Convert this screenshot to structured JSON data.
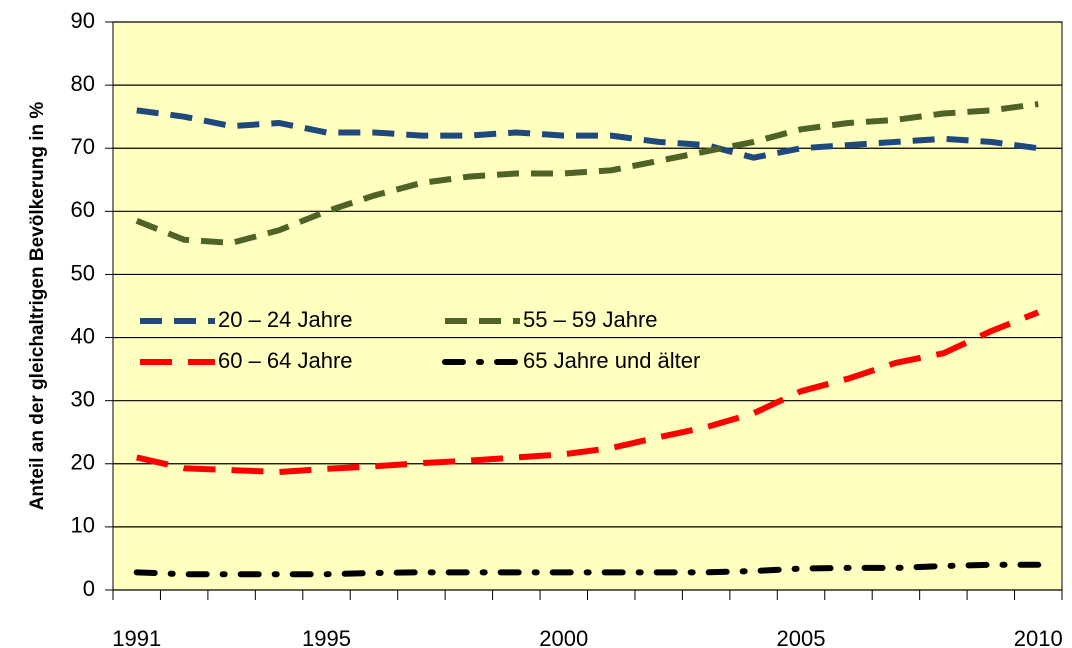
{
  "chart_data": {
    "type": "line",
    "ylabel": "Anteil an der gleichaltrigen Bevölkerung in %",
    "categories": [
      "1991",
      null,
      null,
      null,
      "1995",
      null,
      null,
      null,
      null,
      "2000",
      null,
      null,
      null,
      null,
      "2005",
      null,
      null,
      null,
      null,
      "2010"
    ],
    "series": [
      {
        "name": "20 – 24 Jahre",
        "color": "#1f497d",
        "dash": "dash",
        "values": [
          76,
          75,
          73.5,
          74,
          72.5,
          72.5,
          72,
          72,
          72.5,
          72,
          72,
          71,
          70.5,
          68.5,
          70,
          70.5,
          71,
          71.5,
          71,
          70
        ]
      },
      {
        "name": "55 – 59 Jahre",
        "color": "#4f6228",
        "dash": "dash",
        "values": [
          58.5,
          55.5,
          55,
          57,
          60,
          62.5,
          64.5,
          65.5,
          66,
          66,
          66.5,
          68,
          69.5,
          71,
          73,
          74,
          74.5,
          75.5,
          76,
          77
        ]
      },
      {
        "name": "60 – 64 Jahre",
        "color": "#ff0000",
        "dash": "longdash",
        "values": [
          21,
          19.3,
          19,
          18.7,
          19.2,
          19.6,
          20.1,
          20.5,
          21,
          21.5,
          22.5,
          24.2,
          25.8,
          28,
          31.5,
          33.5,
          36,
          37.5,
          41,
          44
        ]
      },
      {
        "name": "65 Jahre und älter",
        "color": "#000000",
        "dash": "dashdot",
        "values": [
          2.8,
          2.5,
          2.5,
          2.5,
          2.5,
          2.7,
          2.8,
          2.8,
          2.8,
          2.8,
          2.8,
          2.8,
          2.8,
          3,
          3.4,
          3.5,
          3.5,
          3.8,
          4,
          4
        ]
      }
    ],
    "ylim": [
      0,
      90
    ],
    "yticks": [
      0,
      10,
      20,
      30,
      40,
      50,
      60,
      70,
      80,
      90
    ],
    "grid": true,
    "legend": "center left",
    "plot_background": "#ffffc0"
  }
}
